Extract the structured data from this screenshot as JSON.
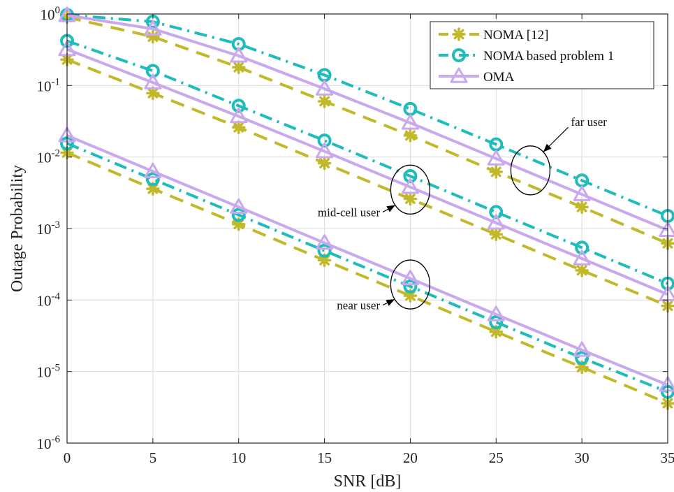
{
  "chart_data": {
    "type": "line",
    "xlabel": "SNR [dB]",
    "ylabel": "Outage Probability",
    "xlim": [
      0,
      35
    ],
    "ylim": [
      1e-06,
      1
    ],
    "yscale": "log",
    "grid": true,
    "legend_position": "top-right",
    "x_ticks": [
      "0",
      "5",
      "10",
      "15",
      "20",
      "25",
      "30",
      "35"
    ],
    "y_ticks": [
      {
        "base": "10",
        "exp": "0"
      },
      {
        "base": "10",
        "exp": "-1"
      },
      {
        "base": "10",
        "exp": "-2"
      },
      {
        "base": "10",
        "exp": "-3"
      },
      {
        "base": "10",
        "exp": "-4"
      },
      {
        "base": "10",
        "exp": "-5"
      },
      {
        "base": "10",
        "exp": "-6"
      }
    ],
    "x": [
      0,
      5,
      10,
      15,
      20,
      25,
      30,
      35
    ],
    "series": [
      {
        "name": "NOMA [12]",
        "color": "#c2b92a",
        "dash": "dashed",
        "marker": "asterisk",
        "user": "far",
        "values": [
          0.9,
          0.48,
          0.18,
          0.06,
          0.02,
          0.0062,
          0.002,
          0.00062
        ]
      },
      {
        "name": "NOMA based problem 1",
        "color": "#1fbcbc",
        "dash": "dashdot",
        "marker": "circle",
        "user": "far",
        "values": [
          0.97,
          0.78,
          0.38,
          0.14,
          0.047,
          0.015,
          0.0047,
          0.0015
        ]
      },
      {
        "name": "OMA",
        "color": "#c9a8ee",
        "dash": "solid",
        "marker": "triangle",
        "user": "far",
        "values": [
          0.96,
          0.62,
          0.26,
          0.09,
          0.03,
          0.0095,
          0.003,
          0.00095
        ]
      },
      {
        "name": "NOMA [12]",
        "color": "#c2b92a",
        "dash": "dashed",
        "marker": "asterisk",
        "user": "mid",
        "values": [
          0.23,
          0.078,
          0.026,
          0.0082,
          0.0026,
          0.00083,
          0.00026,
          8.3e-05
        ]
      },
      {
        "name": "NOMA based problem 1",
        "color": "#1fbcbc",
        "dash": "dashdot",
        "marker": "circle",
        "user": "mid",
        "values": [
          0.42,
          0.16,
          0.052,
          0.017,
          0.0054,
          0.0017,
          0.00054,
          0.00017
        ]
      },
      {
        "name": "OMA",
        "color": "#c9a8ee",
        "dash": "solid",
        "marker": "triangle",
        "user": "mid",
        "values": [
          0.32,
          0.11,
          0.037,
          0.012,
          0.0038,
          0.0012,
          0.00038,
          0.00012
        ]
      },
      {
        "name": "NOMA [12]",
        "color": "#c2b92a",
        "dash": "dashed",
        "marker": "asterisk",
        "user": "near",
        "values": [
          0.0115,
          0.0036,
          0.00115,
          0.00036,
          0.000115,
          3.6e-05,
          1.15e-05,
          3.6e-06
        ]
      },
      {
        "name": "NOMA based problem 1",
        "color": "#1fbcbc",
        "dash": "dashdot",
        "marker": "circle",
        "user": "near",
        "values": [
          0.0155,
          0.0049,
          0.00155,
          0.00049,
          0.000155,
          4.9e-05,
          1.55e-05,
          5.2e-06
        ]
      },
      {
        "name": "OMA",
        "color": "#c9a8ee",
        "dash": "solid",
        "marker": "triangle",
        "user": "near",
        "values": [
          0.02,
          0.0063,
          0.002,
          0.00063,
          0.0002,
          6.3e-05,
          2e-05,
          6.5e-06
        ]
      }
    ],
    "legend": [
      {
        "label": "NOMA [12]",
        "color": "#c2b92a",
        "dash": "dashed",
        "marker": "asterisk"
      },
      {
        "label": "NOMA based problem 1",
        "color": "#1fbcbc",
        "dash": "dashdot",
        "marker": "circle"
      },
      {
        "label": "OMA",
        "color": "#c9a8ee",
        "dash": "solid",
        "marker": "triangle"
      }
    ],
    "annotations": [
      {
        "text": "far user",
        "ellipse_center": [
          27,
          0.0065
        ],
        "arrow_tail": [
          29.2,
          0.026
        ]
      },
      {
        "text": "mid-cell user",
        "ellipse_center": [
          20,
          0.0035
        ],
        "arrow_tail": [
          18.4,
          0.0017
        ]
      },
      {
        "text": "near user",
        "ellipse_center": [
          20,
          0.000165
        ],
        "arrow_tail": [
          18.4,
          8.5e-05
        ]
      }
    ]
  }
}
